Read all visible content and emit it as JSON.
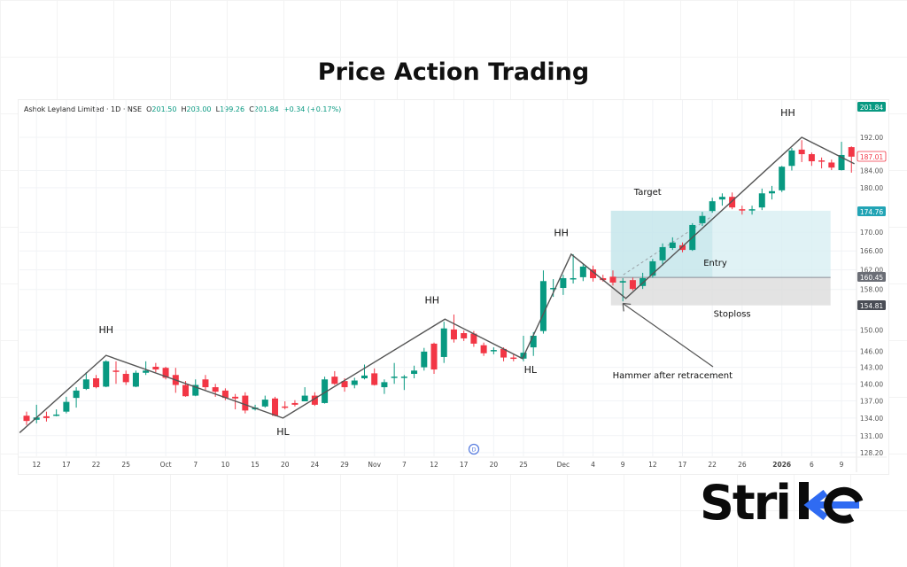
{
  "title": "Price Action Trading",
  "header": {
    "symbol": "Ashok Leyland Limited · 1D · NSE",
    "open_label": "O",
    "open": "201.50",
    "high_label": "H",
    "high": "203.00",
    "low_label": "L",
    "low": "199.26",
    "close_label": "C",
    "close": "201.84",
    "change": "+0.34 (+0.17%)"
  },
  "logo": "Strike",
  "colors": {
    "up": "#089981",
    "down": "#f23645",
    "target_zone": "#d6eef2",
    "stop_zone": "#dcdcdc",
    "logo_accent": "#2f6bf2"
  },
  "chart_data": {
    "type": "candlestick",
    "y_scale": "log",
    "ylim": [
      128.2,
      192
    ],
    "grid": true,
    "y_ticks": [
      "192.00",
      "184.00",
      "180.00",
      "170.00",
      "166.00",
      "162.00",
      "158.00",
      "150.00",
      "146.00",
      "143.00",
      "140.00",
      "137.00",
      "134.00",
      "131.00",
      "128.20"
    ],
    "x_ticks": [
      {
        "label": "12",
        "candle": 1
      },
      {
        "label": "17",
        "candle": 4
      },
      {
        "label": "22",
        "candle": 7
      },
      {
        "label": "25",
        "candle": 10
      },
      {
        "label": "Oct",
        "candle": 14
      },
      {
        "label": "7",
        "candle": 17
      },
      {
        "label": "10",
        "candle": 20
      },
      {
        "label": "15",
        "candle": 23
      },
      {
        "label": "20",
        "candle": 26
      },
      {
        "label": "24",
        "candle": 29
      },
      {
        "label": "29",
        "candle": 32
      },
      {
        "label": "Nov",
        "candle": 35
      },
      {
        "label": "7",
        "candle": 38
      },
      {
        "label": "12",
        "candle": 41
      },
      {
        "label": "17",
        "candle": 44
      },
      {
        "label": "20",
        "candle": 47
      },
      {
        "label": "25",
        "candle": 50
      },
      {
        "label": "Dec",
        "candle": 54
      },
      {
        "label": "4",
        "candle": 57
      },
      {
        "label": "9",
        "candle": 60
      },
      {
        "label": "12",
        "candle": 63
      },
      {
        "label": "17",
        "candle": 66
      },
      {
        "label": "22",
        "candle": 69
      },
      {
        "label": "26",
        "candle": 72
      },
      {
        "label": "2026",
        "candle": 76,
        "bold": true
      },
      {
        "label": "6",
        "candle": 79
      },
      {
        "label": "9",
        "candle": 82
      }
    ],
    "candles": [
      [
        134.4,
        135.1,
        132.8,
        133.5
      ],
      [
        133.7,
        136.3,
        133.1,
        134.1
      ],
      [
        134.3,
        135.1,
        133.4,
        134.0
      ],
      [
        134.5,
        135.5,
        134.3,
        134.6
      ],
      [
        135.1,
        137.7,
        134.8,
        136.8
      ],
      [
        137.5,
        139.4,
        135.8,
        138.8
      ],
      [
        139.1,
        142.1,
        138.9,
        140.8
      ],
      [
        141.0,
        141.6,
        139.2,
        139.4
      ],
      [
        139.5,
        144.3,
        139.4,
        144.1
      ],
      [
        142.4,
        144.1,
        140.0,
        142.3
      ],
      [
        141.8,
        142.4,
        139.8,
        140.3
      ],
      [
        139.5,
        142.4,
        139.4,
        142.0
      ],
      [
        142.0,
        144.1,
        141.6,
        142.4
      ],
      [
        143.1,
        143.8,
        142.1,
        142.6
      ],
      [
        142.9,
        143.1,
        140.8,
        141.1
      ],
      [
        141.6,
        142.9,
        138.4,
        139.8
      ],
      [
        139.8,
        140.5,
        137.7,
        137.8
      ],
      [
        137.9,
        140.8,
        137.8,
        139.8
      ],
      [
        140.8,
        141.6,
        138.9,
        139.4
      ],
      [
        139.4,
        140.0,
        137.7,
        138.6
      ],
      [
        138.8,
        139.2,
        137.1,
        137.5
      ],
      [
        137.7,
        138.2,
        135.5,
        137.4
      ],
      [
        137.9,
        138.5,
        134.8,
        135.3
      ],
      [
        135.5,
        136.3,
        135.3,
        135.8
      ],
      [
        136.0,
        137.9,
        135.8,
        137.2
      ],
      [
        137.4,
        137.7,
        134.3,
        134.4
      ],
      [
        136.0,
        136.9,
        135.5,
        135.8
      ],
      [
        136.6,
        137.1,
        136.0,
        136.3
      ],
      [
        136.9,
        139.4,
        136.9,
        137.9
      ],
      [
        137.9,
        138.5,
        136.1,
        136.3
      ],
      [
        136.6,
        141.3,
        136.5,
        140.8
      ],
      [
        141.3,
        142.3,
        139.8,
        140.0
      ],
      [
        140.5,
        141.0,
        138.6,
        139.4
      ],
      [
        139.8,
        141.1,
        139.2,
        140.6
      ],
      [
        141.0,
        143.5,
        140.8,
        141.5
      ],
      [
        141.9,
        142.8,
        139.7,
        139.8
      ],
      [
        139.4,
        140.8,
        138.2,
        140.3
      ],
      [
        141.1,
        143.8,
        140.0,
        141.3
      ],
      [
        141.1,
        141.6,
        138.9,
        141.3
      ],
      [
        141.8,
        143.3,
        141.0,
        142.4
      ],
      [
        143.0,
        146.6,
        142.4,
        145.9
      ],
      [
        147.4,
        147.6,
        141.8,
        142.6
      ],
      [
        144.9,
        151.6,
        143.8,
        150.3
      ],
      [
        150.1,
        153.0,
        147.6,
        148.2
      ],
      [
        149.4,
        149.9,
        147.9,
        148.4
      ],
      [
        149.3,
        149.8,
        146.8,
        147.4
      ],
      [
        147.1,
        147.6,
        145.1,
        145.6
      ],
      [
        146.1,
        146.7,
        145.4,
        146.2
      ],
      [
        146.4,
        146.7,
        144.1,
        144.8
      ],
      [
        144.8,
        145.4,
        144.1,
        144.6
      ],
      [
        144.6,
        148.9,
        144.1,
        145.7
      ],
      [
        146.7,
        149.6,
        145.1,
        148.9
      ],
      [
        149.8,
        161.9,
        149.3,
        159.7
      ],
      [
        158.1,
        160.1,
        156.5,
        158.3
      ],
      [
        158.3,
        161.0,
        156.9,
        160.3
      ],
      [
        160.1,
        165.3,
        159.2,
        160.3
      ],
      [
        160.5,
        163.2,
        159.7,
        162.7
      ],
      [
        162.1,
        162.9,
        159.6,
        160.3
      ],
      [
        160.3,
        161.0,
        159.6,
        159.9
      ],
      [
        160.6,
        161.9,
        158.8,
        159.4
      ],
      [
        159.4,
        160.3,
        155.6,
        159.7
      ],
      [
        159.9,
        160.4,
        157.8,
        158.1
      ],
      [
        158.7,
        161.4,
        158.1,
        160.3
      ],
      [
        160.8,
        164.3,
        160.4,
        163.8
      ],
      [
        164.0,
        167.6,
        162.9,
        166.8
      ],
      [
        166.6,
        168.9,
        166.2,
        167.8
      ],
      [
        167.2,
        167.8,
        165.7,
        166.2
      ],
      [
        166.2,
        172.0,
        166.0,
        171.6
      ],
      [
        172.0,
        174.5,
        171.4,
        173.6
      ],
      [
        174.7,
        177.7,
        174.3,
        176.9
      ],
      [
        177.3,
        178.7,
        175.9,
        177.9
      ],
      [
        177.9,
        178.9,
        175.1,
        175.5
      ],
      [
        175.1,
        175.9,
        173.9,
        174.9
      ],
      [
        174.9,
        175.9,
        173.9,
        175.1
      ],
      [
        175.5,
        179.8,
        174.9,
        178.7
      ],
      [
        178.7,
        180.4,
        177.3,
        179.2
      ],
      [
        179.4,
        185.1,
        179.0,
        184.9
      ],
      [
        185.1,
        189.4,
        184.0,
        188.8
      ],
      [
        189.0,
        191.3,
        186.0,
        187.9
      ],
      [
        187.9,
        188.3,
        185.1,
        186.2
      ],
      [
        186.4,
        187.1,
        184.5,
        186.2
      ],
      [
        185.9,
        186.6,
        184.1,
        184.7
      ],
      [
        184.1,
        190.9,
        184.0,
        187.7
      ],
      [
        189.6,
        189.8,
        183.5,
        187.3
      ]
    ],
    "candle_format": [
      "open",
      "high",
      "low",
      "close"
    ],
    "price_labels": [
      {
        "value": "201.84",
        "style": "up"
      },
      {
        "value": "187.01",
        "style": "last"
      },
      {
        "value": "174.76",
        "style": "target"
      },
      {
        "value": "160.45",
        "style": "entry"
      },
      {
        "value": "154.81",
        "style": "stop"
      }
    ],
    "swing_line": [
      [
        -0.7,
        131.5
      ],
      [
        8,
        145.2
      ],
      [
        25.8,
        134.0
      ],
      [
        42.1,
        152.1
      ],
      [
        49.9,
        144.6
      ],
      [
        54.8,
        165.3
      ],
      [
        60.3,
        156.2
      ],
      [
        78,
        192.0
      ],
      [
        83.3,
        185.6
      ]
    ],
    "position": {
      "from_candle": 58.8,
      "to_candle": 80.9,
      "split_candle": 69,
      "target": 174.76,
      "entry": 160.45,
      "stop": 154.81
    },
    "annotations": [
      {
        "text": "HH",
        "candle": 8,
        "price": 149.4
      },
      {
        "text": "HL",
        "candle": 25.8,
        "price": 131.1
      },
      {
        "text": "HH",
        "candle": 40.8,
        "price": 155.2
      },
      {
        "text": "HL",
        "candle": 50.7,
        "price": 142.0
      },
      {
        "text": "HH",
        "candle": 53.8,
        "price": 169.2
      },
      {
        "text": "HH",
        "candle": 76.6,
        "price": 197.3
      },
      {
        "text": "Target",
        "candle": 62.5,
        "price": 178.3
      },
      {
        "text": "Entry",
        "candle": 69.3,
        "price": 162.9
      },
      {
        "text": "Stoploss",
        "candle": 71,
        "price": 152.6
      },
      {
        "text": "Hammer after retracement",
        "candle": 65,
        "price": 141.0
      }
    ],
    "event_marker": "D"
  }
}
